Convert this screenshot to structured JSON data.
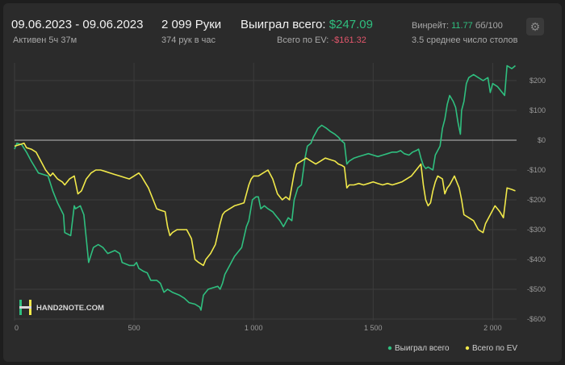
{
  "header": {
    "date_range": "09.06.2023 - 09.06.2023",
    "active_time": "Активен 5ч 37м",
    "hands": "2 099 Руки",
    "hands_per_hour": "374 рук в час",
    "won_total_label": "Выиграл всего:",
    "won_total_value": "$247.09",
    "ev_total_label": "Всего по EV:",
    "ev_total_value": "-$161.32",
    "winrate_label": "Винрейт:",
    "winrate_value": "11.77",
    "winrate_unit": "бб/100",
    "avg_tables": "3.5 среднее число столов"
  },
  "watermark": "HAND2NOTE.COM",
  "colors": {
    "won": "#2fbf7f",
    "ev": "#f1e94a",
    "background": "#2b2b2b",
    "grid": "#3c3c3c",
    "zero_line": "#bdbdbd"
  },
  "icons": {
    "settings": "gear-icon",
    "logo": "h-logo-icon"
  },
  "chart_data": {
    "type": "line",
    "xlim": [
      0,
      2100
    ],
    "ylim": [
      -600,
      270
    ],
    "x_ticks": [
      0,
      500,
      1000,
      1500,
      2000
    ],
    "x_tick_labels": [
      "0",
      "500",
      "1 000",
      "1 500",
      "2 000"
    ],
    "y_ticks": [
      200,
      100,
      0,
      -100,
      -200,
      -300,
      -400,
      -500,
      -600
    ],
    "y_tick_labels": [
      "$200",
      "$100",
      "$0",
      "-$100",
      "-$200",
      "-$300",
      "-$400",
      "-$500",
      "-$600"
    ],
    "legend_position": "bottom-right",
    "series": [
      {
        "name": "Выиграл всего",
        "color": "#2fbf7f",
        "points": [
          [
            0,
            -30
          ],
          [
            10,
            -10
          ],
          [
            30,
            -15
          ],
          [
            50,
            -40
          ],
          [
            70,
            -70
          ],
          [
            100,
            -110
          ],
          [
            140,
            -120
          ],
          [
            160,
            -170
          ],
          [
            180,
            -210
          ],
          [
            205,
            -250
          ],
          [
            210,
            -310
          ],
          [
            235,
            -320
          ],
          [
            250,
            -220
          ],
          [
            255,
            -230
          ],
          [
            275,
            -220
          ],
          [
            290,
            -250
          ],
          [
            300,
            -330
          ],
          [
            310,
            -410
          ],
          [
            330,
            -360
          ],
          [
            350,
            -350
          ],
          [
            370,
            -360
          ],
          [
            390,
            -380
          ],
          [
            420,
            -370
          ],
          [
            440,
            -380
          ],
          [
            450,
            -410
          ],
          [
            480,
            -420
          ],
          [
            500,
            -420
          ],
          [
            510,
            -410
          ],
          [
            520,
            -430
          ],
          [
            540,
            -440
          ],
          [
            555,
            -445
          ],
          [
            570,
            -470
          ],
          [
            595,
            -470
          ],
          [
            610,
            -480
          ],
          [
            625,
            -510
          ],
          [
            640,
            -500
          ],
          [
            660,
            -510
          ],
          [
            690,
            -520
          ],
          [
            710,
            -530
          ],
          [
            730,
            -545
          ],
          [
            755,
            -550
          ],
          [
            775,
            -560
          ],
          [
            780,
            -570
          ],
          [
            790,
            -520
          ],
          [
            810,
            -500
          ],
          [
            830,
            -495
          ],
          [
            850,
            -490
          ],
          [
            860,
            -500
          ],
          [
            870,
            -480
          ],
          [
            880,
            -450
          ],
          [
            900,
            -420
          ],
          [
            920,
            -390
          ],
          [
            940,
            -370
          ],
          [
            950,
            -360
          ],
          [
            970,
            -290
          ],
          [
            980,
            -270
          ],
          [
            995,
            -200
          ],
          [
            1010,
            -190
          ],
          [
            1020,
            -190
          ],
          [
            1030,
            -230
          ],
          [
            1045,
            -220
          ],
          [
            1060,
            -230
          ],
          [
            1080,
            -240
          ],
          [
            1090,
            -250
          ],
          [
            1110,
            -270
          ],
          [
            1125,
            -290
          ],
          [
            1145,
            -260
          ],
          [
            1160,
            -270
          ],
          [
            1170,
            -200
          ],
          [
            1185,
            -160
          ],
          [
            1200,
            -150
          ],
          [
            1215,
            -60
          ],
          [
            1225,
            -20
          ],
          [
            1240,
            -10
          ],
          [
            1250,
            10
          ],
          [
            1270,
            40
          ],
          [
            1285,
            50
          ],
          [
            1305,
            40
          ],
          [
            1320,
            30
          ],
          [
            1340,
            20
          ],
          [
            1355,
            10
          ],
          [
            1365,
            0
          ],
          [
            1380,
            -10
          ],
          [
            1390,
            -80
          ],
          [
            1400,
            -70
          ],
          [
            1420,
            -60
          ],
          [
            1440,
            -55
          ],
          [
            1460,
            -50
          ],
          [
            1480,
            -45
          ],
          [
            1500,
            -50
          ],
          [
            1520,
            -55
          ],
          [
            1540,
            -50
          ],
          [
            1560,
            -45
          ],
          [
            1580,
            -40
          ],
          [
            1600,
            -40
          ],
          [
            1615,
            -35
          ],
          [
            1630,
            -45
          ],
          [
            1650,
            -50
          ],
          [
            1665,
            -40
          ],
          [
            1680,
            -35
          ],
          [
            1690,
            -30
          ],
          [
            1700,
            -60
          ],
          [
            1710,
            -85
          ],
          [
            1720,
            -95
          ],
          [
            1730,
            -90
          ],
          [
            1750,
            -100
          ],
          [
            1760,
            -50
          ],
          [
            1780,
            -20
          ],
          [
            1790,
            40
          ],
          [
            1800,
            70
          ],
          [
            1810,
            120
          ],
          [
            1820,
            150
          ],
          [
            1835,
            130
          ],
          [
            1845,
            110
          ],
          [
            1855,
            60
          ],
          [
            1865,
            20
          ],
          [
            1870,
            100
          ],
          [
            1880,
            130
          ],
          [
            1890,
            190
          ],
          [
            1900,
            210
          ],
          [
            1920,
            220
          ],
          [
            1940,
            210
          ],
          [
            1960,
            200
          ],
          [
            1980,
            210
          ],
          [
            1990,
            160
          ],
          [
            2000,
            190
          ],
          [
            2020,
            180
          ],
          [
            2040,
            160
          ],
          [
            2050,
            150
          ],
          [
            2060,
            250
          ],
          [
            2080,
            240
          ],
          [
            2095,
            250
          ]
        ]
      },
      {
        "name": "Всего по EV",
        "color": "#f1e94a",
        "points": [
          [
            0,
            -20
          ],
          [
            20,
            -15
          ],
          [
            40,
            -10
          ],
          [
            50,
            -25
          ],
          [
            70,
            -30
          ],
          [
            90,
            -40
          ],
          [
            110,
            -70
          ],
          [
            130,
            -100
          ],
          [
            150,
            -120
          ],
          [
            160,
            -110
          ],
          [
            180,
            -130
          ],
          [
            200,
            -140
          ],
          [
            210,
            -150
          ],
          [
            230,
            -130
          ],
          [
            250,
            -120
          ],
          [
            265,
            -180
          ],
          [
            280,
            -170
          ],
          [
            300,
            -130
          ],
          [
            320,
            -110
          ],
          [
            340,
            -100
          ],
          [
            360,
            -100
          ],
          [
            380,
            -105
          ],
          [
            400,
            -110
          ],
          [
            420,
            -115
          ],
          [
            440,
            -120
          ],
          [
            460,
            -125
          ],
          [
            480,
            -130
          ],
          [
            500,
            -120
          ],
          [
            520,
            -110
          ],
          [
            530,
            -120
          ],
          [
            545,
            -140
          ],
          [
            560,
            -160
          ],
          [
            580,
            -200
          ],
          [
            595,
            -230
          ],
          [
            610,
            -235
          ],
          [
            630,
            -240
          ],
          [
            640,
            -290
          ],
          [
            650,
            -320
          ],
          [
            660,
            -310
          ],
          [
            680,
            -300
          ],
          [
            700,
            -300
          ],
          [
            720,
            -300
          ],
          [
            740,
            -330
          ],
          [
            755,
            -400
          ],
          [
            770,
            -410
          ],
          [
            790,
            -420
          ],
          [
            800,
            -400
          ],
          [
            820,
            -380
          ],
          [
            840,
            -350
          ],
          [
            860,
            -280
          ],
          [
            870,
            -250
          ],
          [
            880,
            -240
          ],
          [
            900,
            -230
          ],
          [
            920,
            -220
          ],
          [
            940,
            -215
          ],
          [
            960,
            -210
          ],
          [
            980,
            -150
          ],
          [
            990,
            -130
          ],
          [
            1000,
            -120
          ],
          [
            1020,
            -120
          ],
          [
            1040,
            -110
          ],
          [
            1060,
            -100
          ],
          [
            1080,
            -130
          ],
          [
            1100,
            -180
          ],
          [
            1120,
            -200
          ],
          [
            1135,
            -190
          ],
          [
            1150,
            -200
          ],
          [
            1170,
            -110
          ],
          [
            1180,
            -80
          ],
          [
            1200,
            -70
          ],
          [
            1220,
            -60
          ],
          [
            1240,
            -70
          ],
          [
            1260,
            -80
          ],
          [
            1280,
            -70
          ],
          [
            1300,
            -60
          ],
          [
            1320,
            -65
          ],
          [
            1340,
            -70
          ],
          [
            1355,
            -80
          ],
          [
            1370,
            -85
          ],
          [
            1380,
            -90
          ],
          [
            1390,
            -160
          ],
          [
            1400,
            -150
          ],
          [
            1420,
            -150
          ],
          [
            1440,
            -145
          ],
          [
            1460,
            -150
          ],
          [
            1480,
            -145
          ],
          [
            1500,
            -140
          ],
          [
            1520,
            -145
          ],
          [
            1540,
            -150
          ],
          [
            1560,
            -145
          ],
          [
            1580,
            -150
          ],
          [
            1600,
            -145
          ],
          [
            1620,
            -140
          ],
          [
            1640,
            -130
          ],
          [
            1660,
            -120
          ],
          [
            1680,
            -100
          ],
          [
            1700,
            -80
          ],
          [
            1710,
            -150
          ],
          [
            1720,
            -200
          ],
          [
            1730,
            -220
          ],
          [
            1740,
            -210
          ],
          [
            1750,
            -170
          ],
          [
            1760,
            -140
          ],
          [
            1770,
            -120
          ],
          [
            1790,
            -130
          ],
          [
            1800,
            -180
          ],
          [
            1810,
            -160
          ],
          [
            1820,
            -150
          ],
          [
            1840,
            -120
          ],
          [
            1860,
            -160
          ],
          [
            1870,
            -200
          ],
          [
            1880,
            -250
          ],
          [
            1900,
            -260
          ],
          [
            1920,
            -270
          ],
          [
            1940,
            -300
          ],
          [
            1960,
            -310
          ],
          [
            1970,
            -280
          ],
          [
            1990,
            -250
          ],
          [
            2010,
            -220
          ],
          [
            2030,
            -240
          ],
          [
            2045,
            -260
          ],
          [
            2060,
            -160
          ],
          [
            2080,
            -165
          ],
          [
            2095,
            -170
          ]
        ]
      }
    ]
  }
}
